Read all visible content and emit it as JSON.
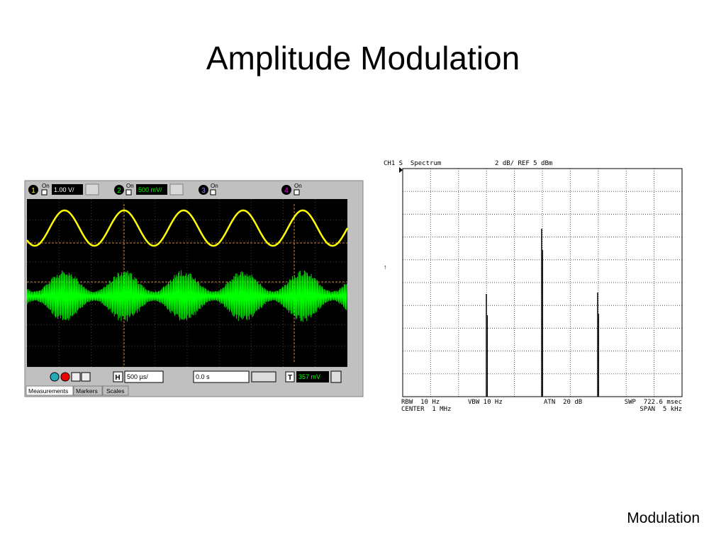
{
  "title": "Amplitude Modulation",
  "footer": "Modulation",
  "oscilloscope": {
    "channels": [
      {
        "number": "1",
        "state": "On",
        "scale": "1.00 V/"
      },
      {
        "number": "2",
        "state": "On",
        "scale": "500 mV/"
      },
      {
        "number": "3",
        "state": "On"
      },
      {
        "number": "4",
        "state": "On"
      }
    ],
    "horizontal_label": "H",
    "timebase": "500 µs/",
    "delay": "0.0 s",
    "trigger_label": "T",
    "trigger_level": "357 mV",
    "tabs": [
      "Measurements",
      "Markers",
      "Scales"
    ]
  },
  "spectrum": {
    "header_left": "CH1 S  Spectrum",
    "header_right": "2 dB/ REF 5 dBm",
    "rbw": "RBW  10 Hz",
    "vbw": "VBW 10 Hz",
    "atn": "ATN  20 dB",
    "swp": "SWP  722.6 msec",
    "center": "CENTER  1 MHz",
    "span": "SPAN  5 kHz"
  }
}
